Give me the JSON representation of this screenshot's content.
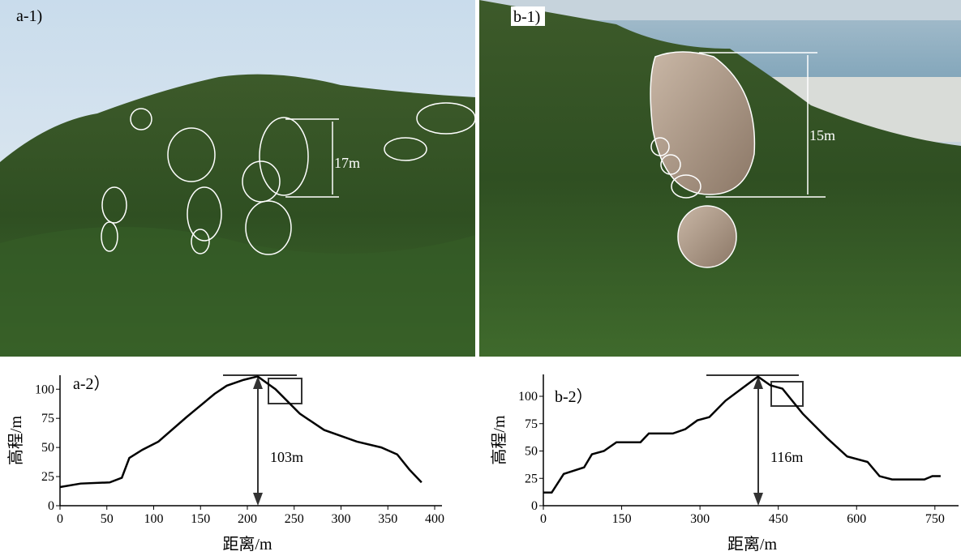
{
  "photos": [
    {
      "label": "a-1)",
      "annotation": "17m"
    },
    {
      "label": "b-1)",
      "annotation": "15m"
    }
  ],
  "chart_data": [
    {
      "type": "line",
      "panel_label": "a-2）",
      "annotation": "103m",
      "x_label": "距离/m",
      "y_label": "高程/m",
      "x": [
        0,
        22,
        53,
        66,
        74,
        88,
        105,
        135,
        165,
        178,
        196,
        211,
        230,
        256,
        282,
        317,
        343,
        360,
        373,
        386
      ],
      "values": [
        16,
        19,
        20,
        24,
        41,
        48,
        55,
        76,
        96,
        103,
        108,
        111,
        100,
        79,
        65,
        55,
        50,
        44,
        31,
        20
      ],
      "color": "#000000",
      "xlim": [
        0,
        400
      ],
      "xticks": [
        0,
        50,
        100,
        150,
        200,
        250,
        300,
        350,
        400
      ],
      "ylim": [
        0,
        112
      ],
      "yticks": [
        0,
        25,
        50,
        75,
        100
      ]
    },
    {
      "type": "line",
      "panel_label": "b-2）",
      "annotation": "116m",
      "x_label": "距离/m",
      "y_label": "高程/m",
      "x": [
        0,
        16,
        39,
        78,
        93,
        116,
        140,
        186,
        202,
        248,
        272,
        295,
        318,
        349,
        380,
        411,
        435,
        458,
        497,
        543,
        582,
        621,
        644,
        668,
        730,
        745,
        761
      ],
      "values": [
        12,
        12,
        29,
        35,
        47,
        50,
        58,
        58,
        66,
        66,
        70,
        78,
        81,
        96,
        107,
        118,
        110,
        107,
        84,
        62,
        45,
        40,
        27,
        24,
        24,
        27,
        27
      ],
      "color": "#000000",
      "xlim": [
        0,
        800
      ],
      "xticks": [
        0,
        150,
        300,
        450,
        600,
        750
      ],
      "ylim": [
        0,
        120
      ],
      "yticks": [
        0,
        25,
        50,
        75,
        100
      ]
    }
  ]
}
